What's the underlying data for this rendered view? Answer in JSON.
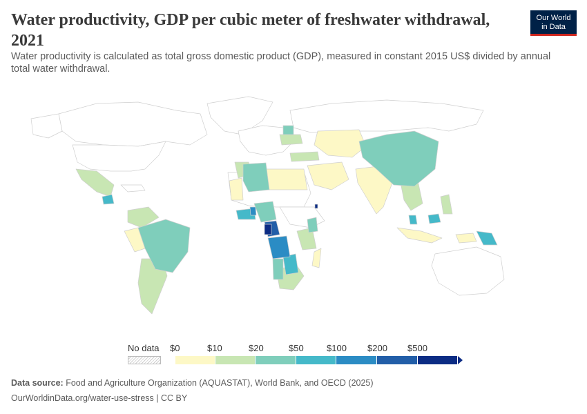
{
  "header": {
    "title": "Water productivity, GDP per cubic meter of freshwater withdrawal, 2021",
    "subtitle": "Water productivity is calculated as total gross domestic product (GDP), measured in constant 2015 US$ divided by annual total water withdrawal.",
    "logo_line1": "Our World",
    "logo_line2": "in Data"
  },
  "legend": {
    "nodata_label": "No data",
    "tick_labels": [
      "$0",
      "$10",
      "$20",
      "$50",
      "$100",
      "$200",
      "$500"
    ],
    "bin_colors": [
      "#fdf8c6",
      "#c8e6b3",
      "#7fcebb",
      "#45b9c9",
      "#2b8cc4",
      "#225ea8",
      "#0c2c84"
    ]
  },
  "footer": {
    "source_label": "Data source:",
    "source_text": "Food and Agriculture Organization (AQUASTAT), World Bank, and OECD (2025)",
    "url_text": "OurWorldinData.org/water-use-stress | CC BY"
  },
  "colors": {
    "no_data_fill": "#ffffff",
    "border": "#cccccc",
    "accent": "#ce261e",
    "brand": "#002147"
  }
}
